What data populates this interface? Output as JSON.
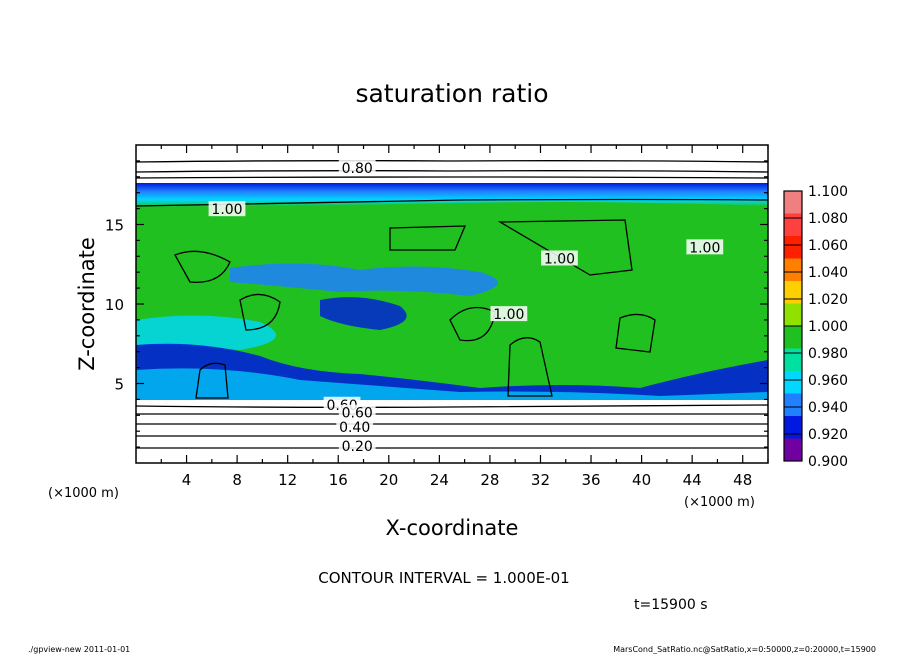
{
  "chart_data": {
    "type": "heatmap",
    "title": "saturation ratio",
    "xlabel": "X-coordinate",
    "ylabel": "Z-coordinate",
    "x_unit": "(×1000 m)",
    "y_unit": "(×1000 m)",
    "xlim": [
      0,
      50
    ],
    "ylim": [
      0,
      20
    ],
    "x_ticks": [
      4,
      8,
      12,
      16,
      20,
      24,
      28,
      32,
      36,
      40,
      44,
      48
    ],
    "y_ticks": [
      5,
      10,
      15
    ],
    "contour_labels": [
      {
        "text": "0.80",
        "x": 17.5,
        "z": 18.5
      },
      {
        "text": "1.00",
        "x": 7.2,
        "z": 15.9
      },
      {
        "text": "1.00",
        "x": 29.5,
        "z": 9.3
      },
      {
        "text": "1.00",
        "x": 33.5,
        "z": 12.8
      },
      {
        "text": "1.00",
        "x": 45.0,
        "z": 13.5
      },
      {
        "text": "0.60",
        "x": 16.3,
        "z": 3.6
      },
      {
        "text": "0.60",
        "x": 17.5,
        "z": 3.1
      },
      {
        "text": "0.40",
        "x": 17.3,
        "z": 2.2
      },
      {
        "text": "0.20",
        "x": 17.5,
        "z": 1.0
      }
    ],
    "contour_interval_text": "CONTOUR INTERVAL = 1.000E-01",
    "time_text": "t=15900 s",
    "colorbar": {
      "levels": [
        "1.100",
        "1.080",
        "1.060",
        "1.040",
        "1.020",
        "1.000",
        "0.980",
        "0.960",
        "0.940",
        "0.920",
        "0.900"
      ],
      "colors": [
        "#f08080",
        "#ff4040",
        "#ff2000",
        "#ff8000",
        "#ffd000",
        "#90e000",
        "#20c020",
        "#00e0a0",
        "#00d8ff",
        "#2080ff",
        "#0018e0",
        "#7000a0"
      ]
    }
  },
  "footer": {
    "left": "./gpview-new   2011-01-01",
    "right": "MarsCond_SatRatio.nc@SatRatio,x=0:50000,z=0:20000,t=15900"
  }
}
